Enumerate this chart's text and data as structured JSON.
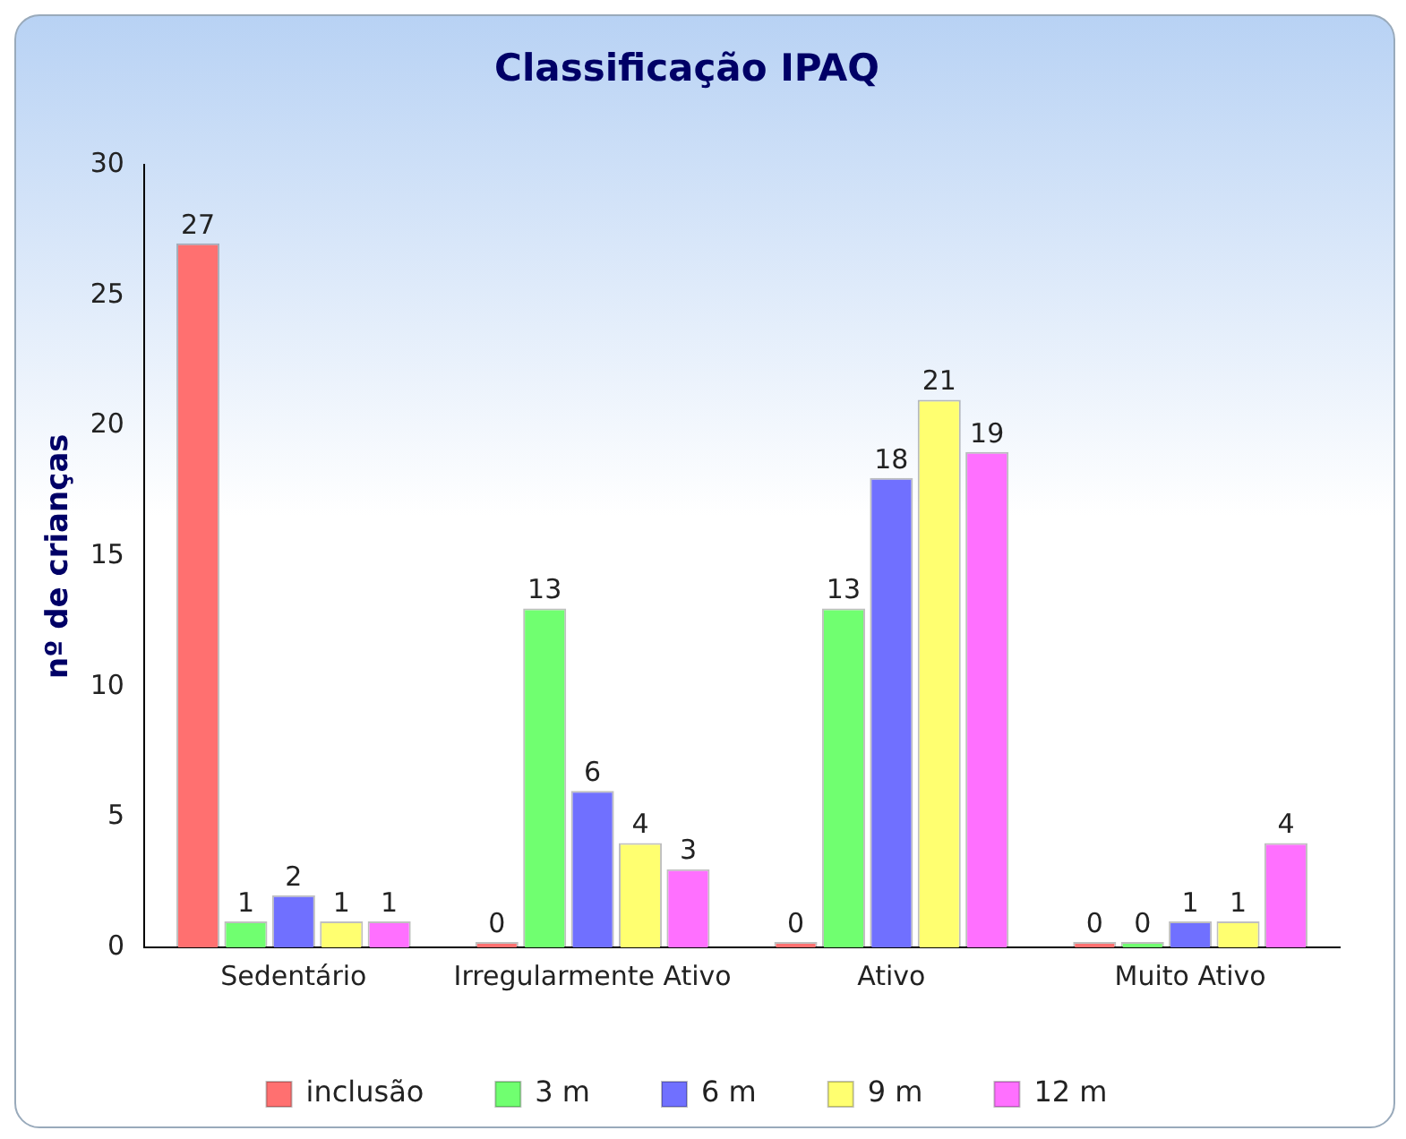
{
  "chart_data": {
    "type": "bar",
    "title": "Classificação IPAQ",
    "ylabel": "nº de crianças",
    "categories": [
      "Sedentário",
      "Irregularmente Ativo",
      "Ativo",
      "Muito Ativo"
    ],
    "series": [
      {
        "name": "inclusão",
        "color": "#ff7070",
        "values": [
          27,
          0,
          0,
          0
        ]
      },
      {
        "name": "3 m",
        "color": "#70ff70",
        "values": [
          1,
          13,
          13,
          0
        ]
      },
      {
        "name": "6 m",
        "color": "#7070ff",
        "values": [
          2,
          6,
          18,
          1
        ]
      },
      {
        "name": "9 m",
        "color": "#ffff70",
        "values": [
          1,
          4,
          21,
          1
        ]
      },
      {
        "name": "12 m",
        "color": "#ff70ff",
        "values": [
          1,
          3,
          19,
          4
        ]
      }
    ],
    "ylim": [
      0,
      30
    ],
    "yticks": [
      0,
      5,
      10,
      15,
      20,
      25,
      30
    ],
    "grid": false,
    "legend": "bottom",
    "data_labels": true
  }
}
